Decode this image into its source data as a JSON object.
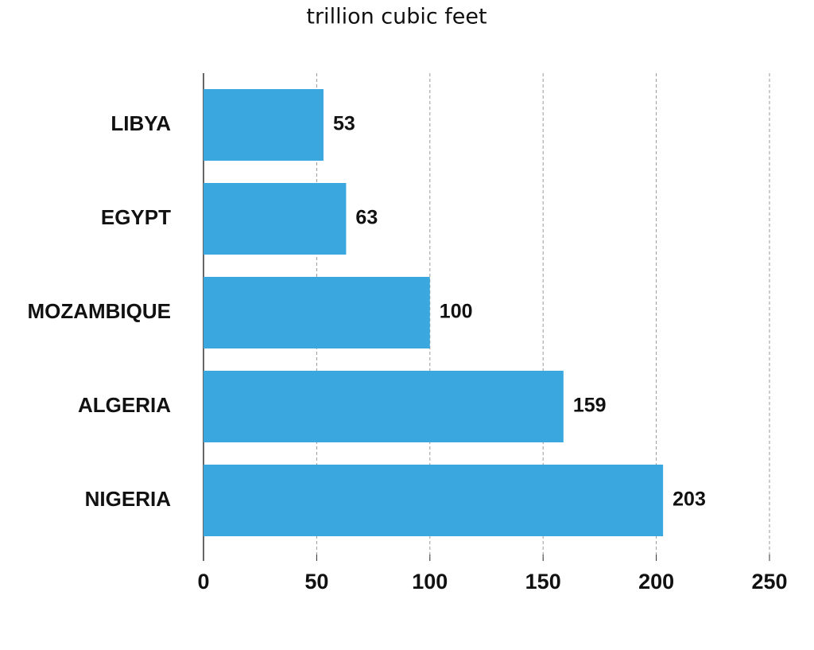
{
  "chart_data": {
    "type": "bar",
    "orientation": "horizontal",
    "title": "trillion cubic feet",
    "categories": [
      "LIBYA",
      "EGYPT",
      "MOZAMBIQUE",
      "ALGERIA",
      "NIGERIA"
    ],
    "values": [
      53,
      63,
      100,
      159,
      203
    ],
    "color": "#3aa7df",
    "xlim": [
      0,
      250
    ],
    "xticks": [
      0,
      50,
      100,
      150,
      200,
      250
    ],
    "grid": true
  }
}
